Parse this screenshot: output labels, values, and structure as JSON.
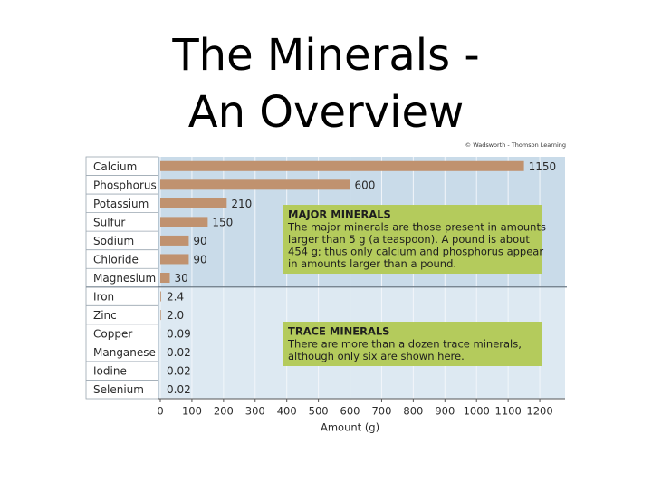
{
  "chart_data": {
    "type": "bar",
    "orientation": "horizontal",
    "title": [
      "The Minerals -",
      "An Overview"
    ],
    "credit": "© Wadsworth - Thomson Learning",
    "categories": [
      "Calcium",
      "Phosphorus",
      "Potassium",
      "Sulfur",
      "Sodium",
      "Chloride",
      "Magnesium",
      "Iron",
      "Zinc",
      "Copper",
      "Manganese",
      "Iodine",
      "Selenium"
    ],
    "values": [
      1150,
      600,
      210,
      150,
      90,
      90,
      30,
      2.4,
      2.0,
      0.09,
      0.02,
      0.02,
      0.02
    ],
    "value_labels": [
      "1150",
      "600",
      "210",
      "150",
      "90",
      "90",
      "30",
      "2.4",
      "2.0",
      "0.09",
      "0.02",
      "0.02",
      "0.02"
    ],
    "color": "#c0926f",
    "xlabel": "Amount (g)",
    "xlim": [
      0,
      1280
    ],
    "xticks": [
      0,
      100,
      200,
      300,
      400,
      500,
      600,
      700,
      800,
      900,
      1000,
      1100,
      1200
    ],
    "grid": true,
    "annotations": [
      {
        "title": "MAJOR MINERALS",
        "lines": [
          "The major minerals are those present in amounts",
          "larger than 5 g (a teaspoon). A pound is about",
          "454 g; thus only calcium and phosphorus appear",
          "in amounts larger than a pound."
        ]
      },
      {
        "title": "TRACE MINERALS",
        "lines": [
          "There are more than a dozen trace minerals,",
          "although only six are shown here."
        ]
      }
    ]
  }
}
